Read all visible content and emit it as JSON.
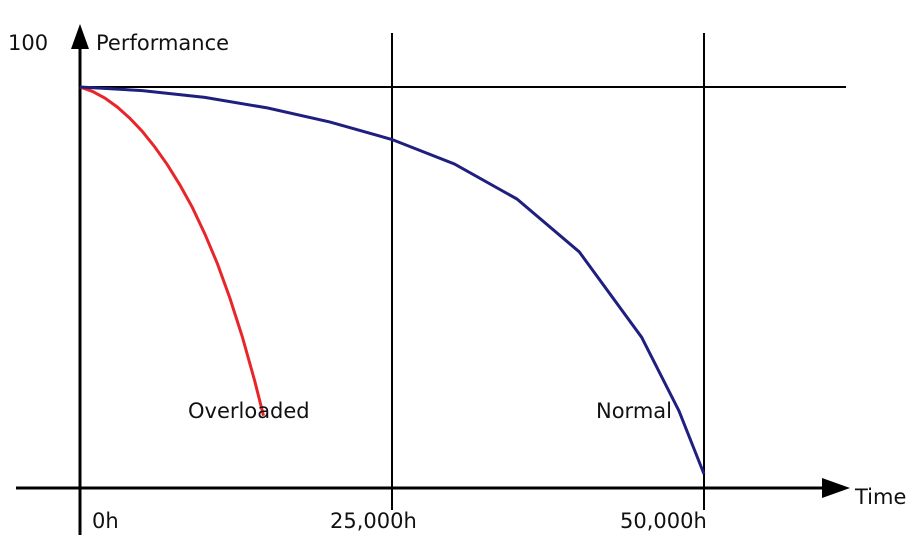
{
  "chart_data": {
    "type": "line",
    "title": "",
    "xlabel": "Time",
    "ylabel": "Performance",
    "y_max_label": "100",
    "x_ticks": [
      {
        "value": 0,
        "label": "0h"
      },
      {
        "value": 25000,
        "label": "25,000h"
      },
      {
        "value": 50000,
        "label": "50,000h"
      }
    ],
    "xlim": [
      0,
      50000
    ],
    "ylim": [
      0,
      100
    ],
    "reference_line_y": 100,
    "grid": false,
    "series": [
      {
        "name": "Overloaded",
        "color": "#e8262a",
        "x": [
          0,
          1000,
          2000,
          3000,
          4000,
          5000,
          6000,
          7000,
          8000,
          9000,
          10000,
          11000,
          12000,
          13000,
          14000,
          14700
        ],
        "y": [
          100,
          98.9,
          97.2,
          95,
          92.2,
          88.9,
          85,
          80.6,
          75.6,
          70,
          63.4,
          56,
          47.4,
          37.8,
          26.7,
          18
        ]
      },
      {
        "name": "Normal",
        "color": "#1f1f7f",
        "x": [
          0,
          5000,
          10000,
          15000,
          20000,
          25000,
          30000,
          35000,
          40000,
          45000,
          48000,
          50000
        ],
        "y": [
          100,
          99.1,
          97.4,
          94.8,
          91.3,
          86.9,
          80.8,
          72.1,
          58.9,
          37.6,
          19.2,
          3.5
        ]
      }
    ]
  }
}
